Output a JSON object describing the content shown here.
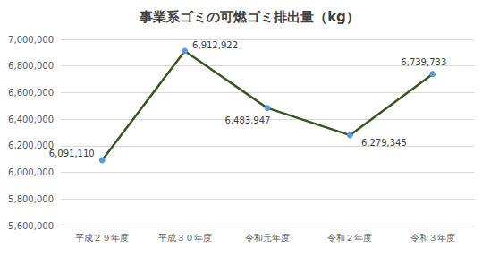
{
  "chart_data": {
    "type": "line",
    "title": "事業系ゴミの可燃ゴミ排出量（kg）",
    "categories": [
      "平成２９年度",
      "平成３０年度",
      "令和元年度",
      "令和２年度",
      "令和３年度"
    ],
    "values": [
      6091110,
      6912922,
      6483947,
      6279345,
      6739733
    ],
    "value_labels": [
      "6,091,110",
      "6,912,922",
      "6,483,947",
      "6,279,345",
      "6,739,733"
    ],
    "color": "#375623",
    "marker": "circle",
    "data_labels": true,
    "grid": true,
    "ylim": [
      5600000,
      7000000
    ],
    "yticks": [
      {
        "value": 5600000,
        "label": "5,600,000"
      },
      {
        "value": 5800000,
        "label": "5,800,000"
      },
      {
        "value": 6000000,
        "label": "6,000,000"
      },
      {
        "value": 6200000,
        "label": "6,200,000"
      },
      {
        "value": 6400000,
        "label": "6,400,000"
      },
      {
        "value": 6600000,
        "label": "6,600,000"
      },
      {
        "value": 6800000,
        "label": "6,800,000"
      },
      {
        "value": 7000000,
        "label": "7,000,000"
      }
    ]
  }
}
